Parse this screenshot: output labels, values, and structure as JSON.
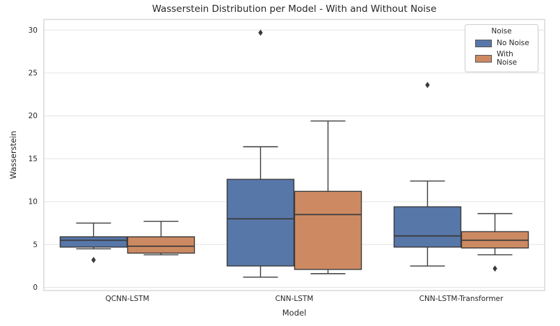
{
  "chart_data": {
    "type": "boxplot",
    "title": "Wasserstein Distribution per Model - With and Without Noise",
    "xlabel": "Model",
    "ylabel": "Wasserstein",
    "categories": [
      "QCNN-LSTM",
      "CNN-LSTM",
      "CNN-LSTM-Transformer"
    ],
    "yticks": [
      0,
      5,
      10,
      15,
      20,
      25,
      30
    ],
    "ylim": [
      -0.4,
      31.2
    ],
    "grid": "horizontal",
    "legend": {
      "title": "Noise",
      "position": "upper right"
    },
    "colors": {
      "edge": "#3a3a3a",
      "gridline": "#e3e3e3",
      "spine": "#cfcfcf"
    },
    "series": [
      {
        "name": "No Noise",
        "color": "#5877a9",
        "boxes": [
          {
            "category": "QCNN-LSTM",
            "whisker_low": 4.5,
            "q1": 4.7,
            "median": 5.5,
            "q3": 5.9,
            "whisker_high": 7.5,
            "outliers": [
              3.2
            ]
          },
          {
            "category": "CNN-LSTM",
            "whisker_low": 1.2,
            "q1": 2.5,
            "median": 8.0,
            "q3": 12.6,
            "whisker_high": 16.4,
            "outliers": [
              29.7
            ]
          },
          {
            "category": "CNN-LSTM-Transformer",
            "whisker_low": 2.5,
            "q1": 4.7,
            "median": 6.0,
            "q3": 9.4,
            "whisker_high": 12.4,
            "outliers": [
              23.6
            ]
          }
        ]
      },
      {
        "name": "With Noise",
        "color": "#cd8a62",
        "boxes": [
          {
            "category": "QCNN-LSTM",
            "whisker_low": 3.8,
            "q1": 4.0,
            "median": 4.8,
            "q3": 5.9,
            "whisker_high": 7.7,
            "outliers": []
          },
          {
            "category": "CNN-LSTM",
            "whisker_low": 1.6,
            "q1": 2.1,
            "median": 8.5,
            "q3": 11.2,
            "whisker_high": 19.4,
            "outliers": []
          },
          {
            "category": "CNN-LSTM-Transformer",
            "whisker_low": 3.8,
            "q1": 4.6,
            "median": 5.5,
            "q3": 6.5,
            "whisker_high": 8.6,
            "outliers": [
              2.2
            ]
          }
        ]
      }
    ]
  }
}
